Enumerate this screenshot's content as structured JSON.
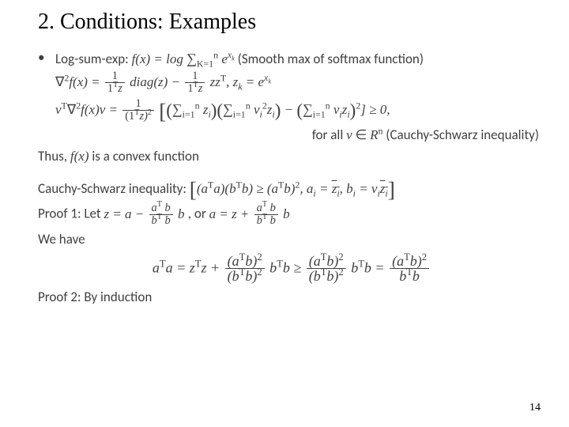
{
  "title": "2. Conditions: Examples",
  "page_number": "14",
  "colors": {
    "background": "#ffffff",
    "title_text": "#000000",
    "body_text": "#404040",
    "rule": "#404040"
  },
  "fonts": {
    "title_family": "Times New Roman",
    "title_size_pt": 28,
    "body_family": "Calibri",
    "body_size_pt": 17,
    "math_family": "Cambria Math"
  },
  "content": {
    "bullet1_lead": "Log-sum-exp: ",
    "bullet1_tail": " (Smooth max of softmax function)",
    "eq_f_lhs": "f(x) = log",
    "eq_f_sum_low": "K=1",
    "eq_f_sum_up": "n",
    "eq_f_rhs": "e",
    "eq_f_exp": "x",
    "eq_f_exp_sub": "k",
    "hess_lhs": "∇",
    "hess_sup": "2",
    "hess_f": "f(x) = ",
    "frac1_num": "1",
    "frac1_den_a": "1",
    "frac1_den_b": "T",
    "frac1_den_c": "z",
    "diag": "diag(z) − ",
    "frac2_num": "1",
    "zzT_a": "zz",
    "zzT_b": "T",
    "zk_lead": ", z",
    "zk_sub": "k",
    "zk_eq": " = e",
    "zk_exp": "x",
    "zk_exp_sub": "k",
    "quad_lhs_a": "v",
    "quad_lhs_b": "T",
    "quad_lhs_c": "∇",
    "quad_lhs_d": "2",
    "quad_lhs_e": "f(x)v = ",
    "frac3_num": "1",
    "frac3_den_a": "(1",
    "frac3_den_b": "T",
    "frac3_den_c": "z)",
    "frac3_den_d": "2",
    "sum_low": "i=1",
    "sum_up": "n",
    "sum1_body": "z",
    "sum1_sub": "i",
    "sum2_body_a": "v",
    "sum2_body_b": "i",
    "sum2_body_c": "2",
    "sum2_body_d": "z",
    "sum2_body_e": "i",
    "sum3_body_a": "v",
    "sum3_body_b": "i",
    "sum3_body_c": "z",
    "sum3_body_d": "i",
    "sum3_pow": "2",
    "geq0": "] ≥ 0,",
    "forall_a": "for all ",
    "forall_b": "v",
    "forall_c": " ∈ ",
    "forall_d": "R",
    "forall_e": "n",
    "forall_tail": " (Cauchy-Schwarz inequality)",
    "thus_a": "Thus, ",
    "thus_b": "f(x)",
    "thus_c": " is a convex function",
    "cs_label": "Cauchy-Schwarz inequality:  ",
    "cs_a1": "(a",
    "cs_a2": "T",
    "cs_a3": "a)(b",
    "cs_a4": "T",
    "cs_a5": "b) ≥ (a",
    "cs_a6": "T",
    "cs_a7": "b)",
    "cs_a8": "2",
    "cs_b1": ", a",
    "cs_b2": "i",
    "cs_b3": " = ",
    "cs_b4": "z",
    "cs_b5": "i",
    "cs_b6": ", b",
    "cs_b7": "i",
    "cs_b8": " = v",
    "cs_b9": "i",
    "cs_b10": "z",
    "cs_b11": "i",
    "proof1_a": "Proof 1: Let ",
    "proof1_b": "z = a − ",
    "proof1_num_a": "a",
    "proof1_num_b": "T",
    "proof1_num_c": " b",
    "proof1_den_a": "b",
    "proof1_den_b": "T",
    "proof1_den_c": " b",
    "proof1_c": "b",
    "proof1_d": ", or ",
    "proof1_e": "a = z + ",
    "proof1_f": "b",
    "wehave": "We have",
    "eq4_a1": "a",
    "eq4_a2": "T",
    "eq4_a3": "a = z",
    "eq4_a4": "T",
    "eq4_a5": "z + ",
    "eq4_num_a": "(a",
    "eq4_num_b": "T",
    "eq4_num_c": "b)",
    "eq4_num_d": "2",
    "eq4_den_a": "(b",
    "eq4_den_b": "T",
    "eq4_den_c": "b)",
    "eq4_den_d": "2",
    "eq4_mid_a": "b",
    "eq4_mid_b": "T",
    "eq4_mid_c": "b ≥ ",
    "eq4_tail_a": "b",
    "eq4_tail_b": "T",
    "eq4_tail_c": "b = ",
    "eq4_last_den_a": "b",
    "eq4_last_den_b": "T",
    "eq4_last_den_c": "b",
    "proof2": "Proof 2: By induction"
  }
}
